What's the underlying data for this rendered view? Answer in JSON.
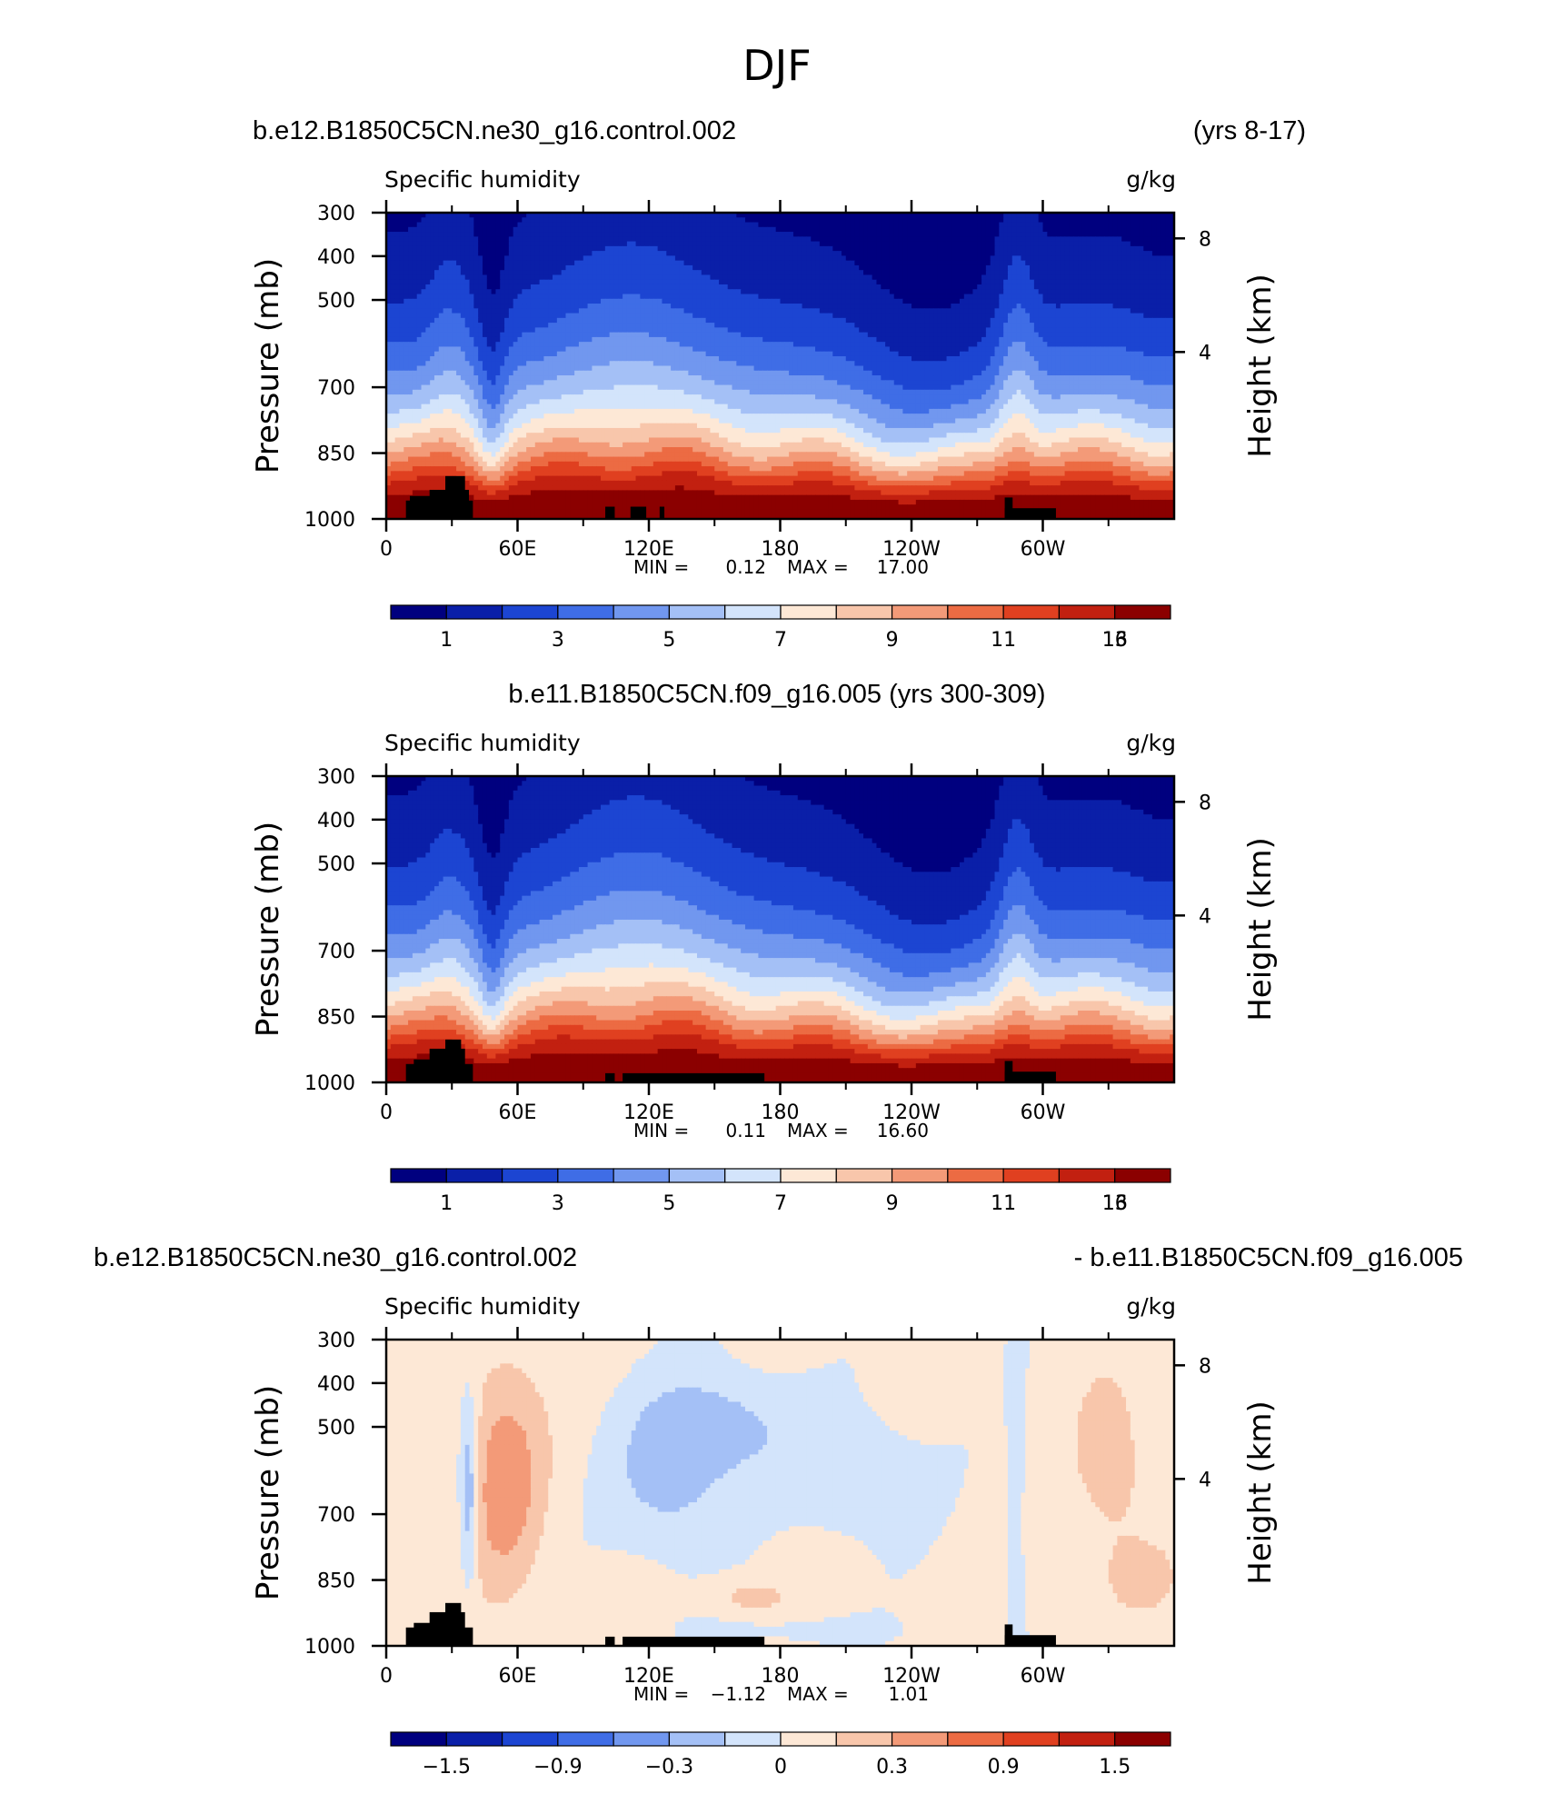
{
  "figure": {
    "title": "DJF"
  },
  "colors": {
    "absolute_scale": [
      "#00007f",
      "#0a1fa8",
      "#1c45d2",
      "#3f6de6",
      "#7197ef",
      "#a4c0f6",
      "#d3e4fb",
      "#fde8d6",
      "#f8c6ab",
      "#f39a78",
      "#ec6b43",
      "#e04020",
      "#c22010",
      "#8b0000"
    ],
    "difference_scale": [
      "#00007f",
      "#0a1fa8",
      "#1c45d2",
      "#3f6de6",
      "#7197ef",
      "#a4c0f6",
      "#d3e4fb",
      "#fde8d6",
      "#f8c6ab",
      "#f39a78",
      "#ec6b43",
      "#e04020",
      "#c22010",
      "#8b0000"
    ],
    "topography": "#000000"
  },
  "chart_data": [
    {
      "type": "heatmap",
      "title_left": "b.e12.B1850C5CN.ne30_g16.control.002",
      "title_right": "(yrs 8-17)",
      "field_label": "Specific humidity",
      "units": "g/kg",
      "ylabel": "Pressure (mb)",
      "ylabel_right": "Height (km)",
      "x_ticks": [
        "0",
        "60E",
        "120E",
        "180",
        "120W",
        "60W"
      ],
      "y_ticks": [
        "300",
        "400",
        "500",
        "700",
        "850",
        "1000"
      ],
      "y_right_ticks": [
        "8",
        "4"
      ],
      "min_label": "MIN =",
      "min_value": "0.12",
      "max_label": "MAX =",
      "max_value": "17.00",
      "colorbar_labels": [
        "1",
        "3",
        "5",
        "7",
        "9",
        "11",
        "13",
        "16"
      ],
      "zlim": [
        0.12,
        17.0
      ]
    },
    {
      "type": "heatmap",
      "title_center": "b.e11.B1850C5CN.f09_g16.005 (yrs 300-309)",
      "field_label": "Specific humidity",
      "units": "g/kg",
      "ylabel": "Pressure (mb)",
      "ylabel_right": "Height (km)",
      "x_ticks": [
        "0",
        "60E",
        "120E",
        "180",
        "120W",
        "60W"
      ],
      "y_ticks": [
        "300",
        "400",
        "500",
        "700",
        "850",
        "1000"
      ],
      "y_right_ticks": [
        "8",
        "4"
      ],
      "min_label": "MIN =",
      "min_value": "0.11",
      "max_label": "MAX =",
      "max_value": "16.60",
      "colorbar_labels": [
        "1",
        "3",
        "5",
        "7",
        "9",
        "11",
        "13",
        "16"
      ],
      "zlim": [
        0.11,
        16.6
      ]
    },
    {
      "type": "heatmap",
      "title_left": "b.e12.B1850C5CN.ne30_g16.control.002",
      "title_right": "- b.e11.B1850C5CN.f09_g16.005",
      "field_label": "Specific humidity",
      "units": "g/kg",
      "ylabel": "Pressure (mb)",
      "ylabel_right": "Height (km)",
      "x_ticks": [
        "0",
        "60E",
        "120E",
        "180",
        "120W",
        "60W"
      ],
      "y_ticks": [
        "300",
        "400",
        "500",
        "700",
        "850",
        "1000"
      ],
      "y_right_ticks": [
        "8",
        "4"
      ],
      "min_label": "MIN =",
      "min_value": "−1.12",
      "max_label": "MAX =",
      "max_value": "1.01",
      "colorbar_labels": [
        "−1.5",
        "−0.9",
        "−0.3",
        "0",
        "0.3",
        "0.9",
        "1.5"
      ],
      "zlim": [
        -1.12,
        1.01
      ]
    }
  ]
}
